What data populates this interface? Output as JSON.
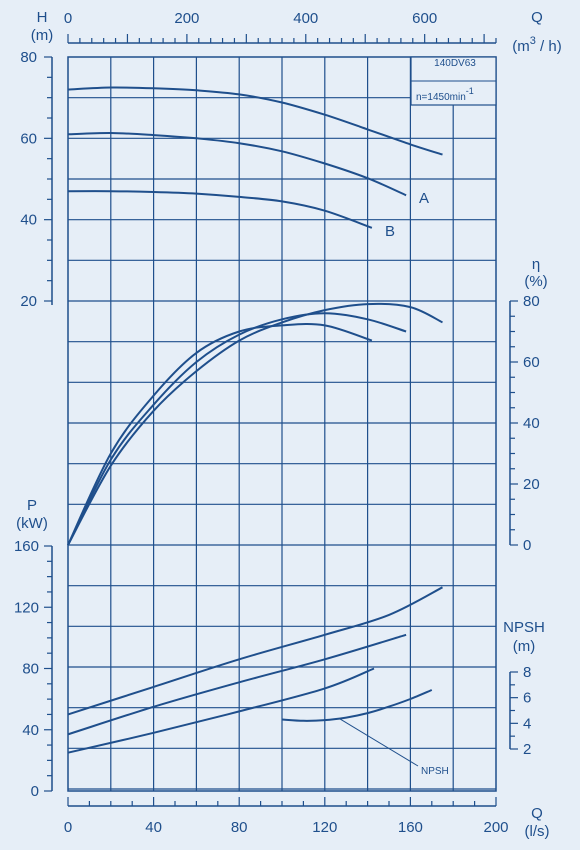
{
  "chart_data": [
    {
      "type": "line",
      "panel": "head",
      "xlabel": "Q",
      "xunit": "(l/s)",
      "ylabel": "H",
      "yunit": "(m)",
      "ylim": [
        0,
        80
      ],
      "yticks": [
        "20",
        "40",
        "60",
        "80"
      ],
      "top_axis": {
        "label": "Q",
        "unit": "(m³/h)",
        "ticks": [
          "0",
          "200",
          "400",
          "600"
        ],
        "range": [
          0,
          720
        ]
      },
      "xticks": [
        "0",
        "40",
        "80",
        "120",
        "160",
        "200"
      ],
      "xlim": [
        0,
        200
      ],
      "grid": true,
      "model": "140DV63",
      "speed": "n=1450min⁻¹",
      "series": [
        {
          "x": [
            0,
            20,
            40,
            60,
            80,
            100,
            120,
            140,
            160,
            175
          ],
          "values": [
            72,
            72.5,
            72.3,
            71.8,
            70.8,
            68.8,
            65.8,
            62.2,
            58.5,
            56
          ]
        },
        {
          "name": "A",
          "x": [
            0,
            20,
            40,
            60,
            80,
            100,
            120,
            140,
            158
          ],
          "values": [
            61,
            61.3,
            60.8,
            60,
            58.8,
            56.8,
            53.8,
            50.2,
            46
          ]
        },
        {
          "name": "B",
          "x": [
            0,
            20,
            40,
            60,
            80,
            100,
            120,
            142
          ],
          "values": [
            47,
            47,
            46.8,
            46.4,
            45.6,
            44.5,
            42.2,
            38
          ]
        }
      ]
    },
    {
      "type": "line",
      "panel": "efficiency",
      "ylabel": "η",
      "yunit": "(%)",
      "ylim": [
        0,
        80
      ],
      "yticks": [
        "0",
        "20",
        "40",
        "60",
        "80"
      ],
      "series": [
        {
          "x": [
            0,
            20,
            40,
            60,
            80,
            100,
            120,
            140,
            160,
            175
          ],
          "values": [
            0,
            26,
            44,
            57,
            67,
            73,
            77,
            79,
            78,
            73
          ]
        },
        {
          "x": [
            0,
            20,
            40,
            60,
            80,
            100,
            120,
            140,
            158
          ],
          "values": [
            0,
            28,
            46,
            60,
            69,
            74,
            76,
            74,
            70
          ]
        },
        {
          "x": [
            0,
            20,
            40,
            60,
            80,
            100,
            120,
            142
          ],
          "values": [
            0,
            30,
            49,
            63,
            70,
            72,
            72,
            67
          ]
        }
      ]
    },
    {
      "type": "line",
      "panel": "power",
      "ylabel": "P",
      "yunit": "(kW)",
      "ylim": [
        0,
        160
      ],
      "yticks": [
        "0",
        "40",
        "80",
        "120",
        "160"
      ],
      "series": [
        {
          "x": [
            0,
            40,
            80,
            120,
            150,
            175
          ],
          "values": [
            50,
            68,
            86,
            102,
            115,
            133
          ]
        },
        {
          "x": [
            0,
            40,
            80,
            120,
            158
          ],
          "values": [
            37,
            55,
            71,
            86,
            102
          ]
        },
        {
          "x": [
            0,
            40,
            80,
            120,
            143
          ],
          "values": [
            25,
            38,
            52,
            67,
            80
          ]
        }
      ]
    },
    {
      "type": "line",
      "panel": "npsh",
      "ylabel": "NPSH",
      "yunit": "(m)",
      "ylim": [
        2,
        8
      ],
      "yticks": [
        "2",
        "4",
        "6",
        "8"
      ],
      "annotation": "NPSH",
      "series": [
        {
          "x": [
            100,
            110,
            120,
            130,
            140,
            150,
            160,
            170
          ],
          "values": [
            4.3,
            4.2,
            4.25,
            4.45,
            4.8,
            5.3,
            5.9,
            6.6
          ]
        }
      ]
    }
  ],
  "labels": {
    "h": "H",
    "h_unit": "(m)",
    "q_top": "Q",
    "q_top_unit_a": "(m",
    "q_top_sup": "3",
    "q_top_unit_b": " / h)",
    "eta": "η",
    "eta_unit": "(%)",
    "p": "P",
    "p_unit": "(kW)",
    "npsh": "NPSH",
    "npsh_unit": "(m)",
    "q_bottom": "Q",
    "q_bottom_unit": "(l/s)",
    "model": "140DV63",
    "speed_a": "n=1450min",
    "speed_sup": "-1",
    "curve_a": "A",
    "curve_b": "B",
    "npsh_note": "NPSH"
  },
  "colors": {
    "ink": "#1f4f8c",
    "background": "#e6eef7"
  }
}
